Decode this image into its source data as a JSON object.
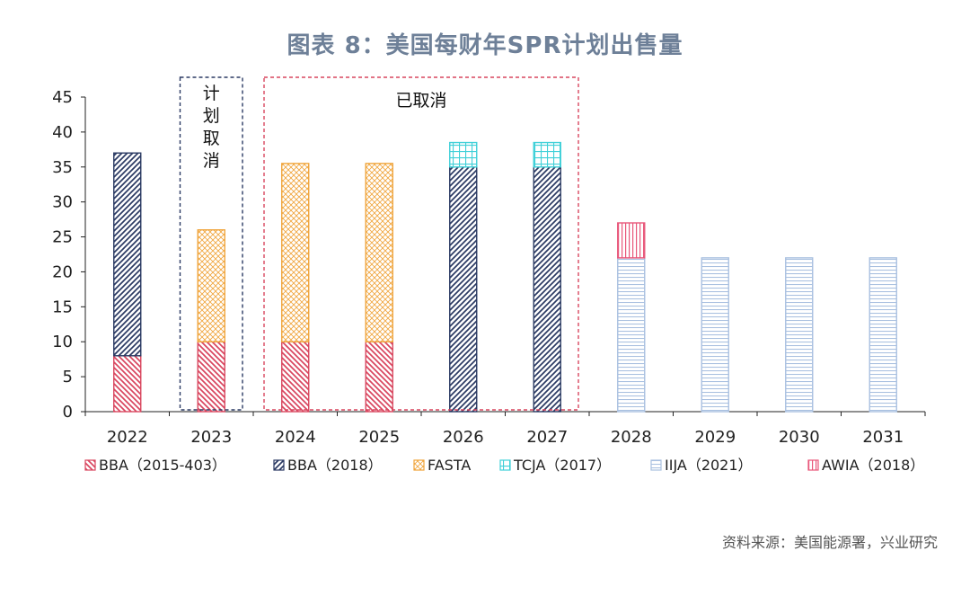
{
  "title": "图表 8：美国每财年SPR计划出售量",
  "source": "资料来源：美国能源署，兴业研究",
  "chart_data": {
    "type": "bar",
    "stacked": true,
    "categories": [
      "2022",
      "2023",
      "2024",
      "2025",
      "2026",
      "2027",
      "2028",
      "2029",
      "2030",
      "2031"
    ],
    "ylim": [
      0,
      45
    ],
    "yticks": [
      0,
      5,
      10,
      15,
      20,
      25,
      30,
      35,
      40,
      45
    ],
    "grid": false,
    "legend_position": "bottom",
    "series": [
      {
        "name": "BBA（2015-403）",
        "pattern": "diag-back",
        "color": "#d9465f",
        "values": [
          8,
          10,
          10,
          10,
          0,
          0,
          0,
          0,
          0,
          0
        ]
      },
      {
        "name": "BBA（2018）",
        "pattern": "diag-fwd",
        "color": "#2b3a63",
        "values": [
          29,
          0,
          0,
          0,
          35,
          35,
          0,
          0,
          0,
          0
        ]
      },
      {
        "name": "FASTA",
        "pattern": "dots",
        "color": "#f0a43a",
        "values": [
          0,
          16,
          25.5,
          25.5,
          0,
          0,
          0,
          0,
          0,
          0
        ]
      },
      {
        "name": "TCJA（2017）",
        "pattern": "grid",
        "color": "#3fd0d8",
        "values": [
          0,
          0,
          0,
          0,
          3.5,
          3.5,
          0,
          0,
          0,
          0
        ]
      },
      {
        "name": "IIJA（2021）",
        "pattern": "hlines",
        "color": "#a9c0e0",
        "values": [
          0,
          0,
          0,
          0,
          0,
          0,
          22,
          22,
          22,
          22
        ]
      },
      {
        "name": "AWIA（2018）",
        "pattern": "vlines",
        "color": "#e8577a",
        "values": [
          0,
          0,
          0,
          0,
          0,
          0,
          5,
          0,
          0,
          0
        ]
      }
    ],
    "annotations": [
      {
        "text": "计划取消",
        "categories": [
          "2023"
        ],
        "style": "dashed-box",
        "color": "#2b3a63",
        "vertical": true
      },
      {
        "text": "已取消",
        "categories": [
          "2024",
          "2025",
          "2026",
          "2027"
        ],
        "style": "dashed-box",
        "color": "#d9465f",
        "vertical": false
      }
    ]
  }
}
